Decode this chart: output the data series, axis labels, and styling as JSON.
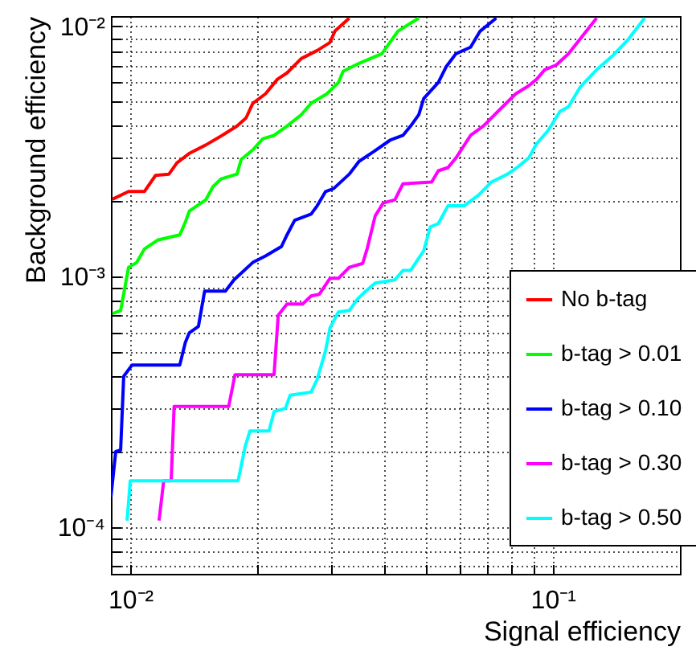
{
  "chart_data": {
    "type": "line",
    "xlabel": "Signal efficiency",
    "ylabel": "Background efficiency",
    "log": "xy",
    "grid": true,
    "legend": "bottom right",
    "line_style": "solid",
    "marker": "none",
    "xlim": [
      0.009,
      0.2
    ],
    "ylim": [
      6.5e-05,
      0.011
    ],
    "xticks": [
      {
        "value": 0.01,
        "label": "10⁻²"
      },
      {
        "value": 0.02,
        "label": null
      },
      {
        "value": 0.03,
        "label": null
      },
      {
        "value": 0.04,
        "label": null
      },
      {
        "value": 0.05,
        "label": null
      },
      {
        "value": 0.06,
        "label": null
      },
      {
        "value": 0.07,
        "label": null
      },
      {
        "value": 0.08,
        "label": null
      },
      {
        "value": 0.09,
        "label": null
      },
      {
        "value": 0.1,
        "label": "10⁻¹"
      },
      {
        "value": 0.2,
        "label": null
      }
    ],
    "yticks": [
      {
        "value": 7e-05,
        "label": null
      },
      {
        "value": 8e-05,
        "label": null
      },
      {
        "value": 9e-05,
        "label": null
      },
      {
        "value": 0.0001,
        "label": "10⁻⁴"
      },
      {
        "value": 0.0002,
        "label": null
      },
      {
        "value": 0.0003,
        "label": null
      },
      {
        "value": 0.0004,
        "label": null
      },
      {
        "value": 0.0005,
        "label": null
      },
      {
        "value": 0.0006,
        "label": null
      },
      {
        "value": 0.0007,
        "label": null
      },
      {
        "value": 0.0008,
        "label": null
      },
      {
        "value": 0.0009,
        "label": null
      },
      {
        "value": 0.001,
        "label": "10⁻³"
      },
      {
        "value": 0.002,
        "label": null
      },
      {
        "value": 0.003,
        "label": null
      },
      {
        "value": 0.004,
        "label": null
      },
      {
        "value": 0.005,
        "label": null
      },
      {
        "value": 0.006,
        "label": null
      },
      {
        "value": 0.007,
        "label": null
      },
      {
        "value": 0.008,
        "label": null
      },
      {
        "value": 0.009,
        "label": null
      },
      {
        "value": 0.01,
        "label": "10⁻²"
      }
    ],
    "series": [
      {
        "name": "No b-tag",
        "color": "#ff0000",
        "x": [
          0.00908,
          0.00991,
          0.0108,
          0.01148,
          0.01235,
          0.0129,
          0.01384,
          0.0151,
          0.0165,
          0.0179,
          0.0188,
          0.0195,
          0.0209,
          0.0223,
          0.0235,
          0.0254,
          0.0277,
          0.0297,
          0.0305,
          0.033
        ],
        "values": [
          0.00204,
          0.00219,
          0.00219,
          0.00254,
          0.00257,
          0.00285,
          0.00312,
          0.00336,
          0.00367,
          0.004,
          0.00431,
          0.00493,
          0.00538,
          0.00615,
          0.00652,
          0.00744,
          0.00801,
          0.00863,
          0.00957,
          0.0108
        ]
      },
      {
        "name": "b-tag > 0.01",
        "color": "#00ff00",
        "x": [
          0.00908,
          0.00949,
          0.00991,
          0.01036,
          0.0108,
          0.0116,
          0.0131,
          0.0135,
          0.0138,
          0.0151,
          0.0157,
          0.0164,
          0.0179,
          0.0183,
          0.0195,
          0.0206,
          0.0219,
          0.0235,
          0.0254,
          0.0268,
          0.0292,
          0.0311,
          0.0319,
          0.0348,
          0.0394,
          0.043,
          0.0482
        ],
        "values": [
          0.000712,
          0.000733,
          0.00109,
          0.00114,
          0.00129,
          0.0014,
          0.00147,
          0.00165,
          0.00183,
          0.00203,
          0.00229,
          0.00246,
          0.00257,
          0.00294,
          0.00321,
          0.00356,
          0.00367,
          0.004,
          0.00444,
          0.00493,
          0.00538,
          0.00597,
          0.00662,
          0.00712,
          0.00778,
          0.00957,
          0.0108
        ]
      },
      {
        "name": "b-tag > 0.10",
        "color": "#0000ff",
        "x": [
          0.009,
          0.00924,
          0.00949,
          0.00965,
          0.0101,
          0.0131,
          0.0135,
          0.0138,
          0.0145,
          0.015,
          0.0168,
          0.0176,
          0.0195,
          0.0209,
          0.0228,
          0.0235,
          0.0245,
          0.0268,
          0.0277,
          0.029,
          0.0303,
          0.033,
          0.0348,
          0.0377,
          0.0412,
          0.0442,
          0.0461,
          0.0482,
          0.0495,
          0.0536,
          0.056,
          0.059,
          0.0639,
          0.0673,
          0.0735
        ],
        "values": [
          0.000132,
          0.0002,
          0.000203,
          0.0004,
          0.000444,
          0.000444,
          0.000546,
          0.000597,
          0.000633,
          0.000876,
          0.000876,
          0.000971,
          0.00114,
          0.00121,
          0.00132,
          0.00147,
          0.00168,
          0.00178,
          0.00192,
          0.00219,
          0.00225,
          0.00257,
          0.00289,
          0.00316,
          0.00351,
          0.00367,
          0.004,
          0.00444,
          0.00515,
          0.00597,
          0.00692,
          0.00778,
          0.00826,
          0.00957,
          0.0108
        ]
      },
      {
        "name": "b-tag > 0.30",
        "color": "#ff00ff",
        "x": [
          0.0117,
          0.012,
          0.0125,
          0.0127,
          0.0171,
          0.0177,
          0.0219,
          0.0224,
          0.0235,
          0.0256,
          0.0268,
          0.028,
          0.0297,
          0.0311,
          0.033,
          0.0355,
          0.0364,
          0.038,
          0.0397,
          0.0423,
          0.0442,
          0.0517,
          0.0536,
          0.0565,
          0.059,
          0.0639,
          0.0685,
          0.0748,
          0.0817,
          0.0877,
          0.0916,
          0.0957,
          0.102,
          0.109,
          0.116,
          0.127
        ],
        "values": [
          0.000106,
          0.000153,
          0.000153,
          0.000303,
          0.000303,
          0.000406,
          0.000406,
          0.000702,
          0.000778,
          0.000778,
          0.000838,
          0.00085,
          0.000985,
          0.000985,
          0.00109,
          0.00113,
          0.0013,
          0.00175,
          0.00197,
          0.00203,
          0.00235,
          0.00239,
          0.00265,
          0.00273,
          0.00298,
          0.00367,
          0.004,
          0.00464,
          0.00538,
          0.00579,
          0.00615,
          0.00671,
          0.00702,
          0.00778,
          0.00889,
          0.0108
        ]
      },
      {
        "name": "b-tag > 0.50",
        "color": "#00ffff",
        "x": [
          0.00983,
          0.01,
          0.018,
          0.0187,
          0.0192,
          0.0213,
          0.0219,
          0.0233,
          0.0239,
          0.0268,
          0.0277,
          0.029,
          0.0297,
          0.0311,
          0.033,
          0.0345,
          0.0361,
          0.038,
          0.0423,
          0.0442,
          0.0461,
          0.0495,
          0.0513,
          0.0536,
          0.0565,
          0.0617,
          0.0668,
          0.0716,
          0.0782,
          0.0832,
          0.0877,
          0.0916,
          0.0974,
          0.104,
          0.109,
          0.116,
          0.127,
          0.139,
          0.151,
          0.165
        ],
        "values": [
          0.000106,
          0.000153,
          0.000153,
          0.000209,
          0.000242,
          0.000242,
          0.000289,
          0.000298,
          0.000336,
          0.000346,
          0.000389,
          0.000507,
          0.000624,
          0.000723,
          0.000733,
          0.000814,
          0.000876,
          0.000943,
          0.000971,
          0.00106,
          0.00106,
          0.00127,
          0.00158,
          0.00163,
          0.00192,
          0.00192,
          0.00212,
          0.00239,
          0.00257,
          0.00277,
          0.00298,
          0.0034,
          0.00383,
          0.00457,
          0.00478,
          0.00571,
          0.00671,
          0.00767,
          0.00889,
          0.0108
        ]
      }
    ]
  }
}
